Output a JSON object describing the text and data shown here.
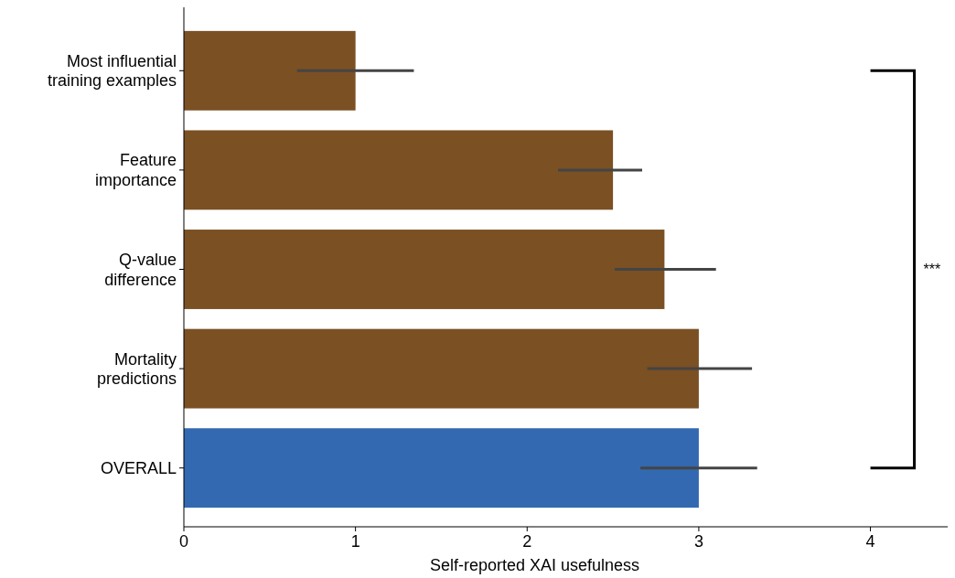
{
  "chart_data": {
    "type": "bar",
    "orientation": "horizontal",
    "xlabel": "Self-reported XAI usefulness",
    "categories": [
      "Most influential\ntraining examples",
      "Feature\nimportance",
      "Q-value\ndifference",
      "Mortality\npredictions",
      "OVERALL"
    ],
    "values": [
      1.0,
      2.5,
      2.8,
      3.0,
      3.0
    ],
    "colors": [
      "#7b5023",
      "#7b5023",
      "#7b5023",
      "#7b5023",
      "#3369b0"
    ],
    "errors": [
      [
        0.66,
        1.34
      ],
      [
        2.18,
        2.67
      ],
      [
        2.51,
        3.1
      ],
      [
        2.7,
        3.31
      ],
      [
        2.66,
        3.34
      ]
    ],
    "xlim": [
      0,
      4.45
    ],
    "xticks": [
      0,
      1,
      2,
      3,
      4
    ],
    "annotations": [
      "***"
    ]
  }
}
